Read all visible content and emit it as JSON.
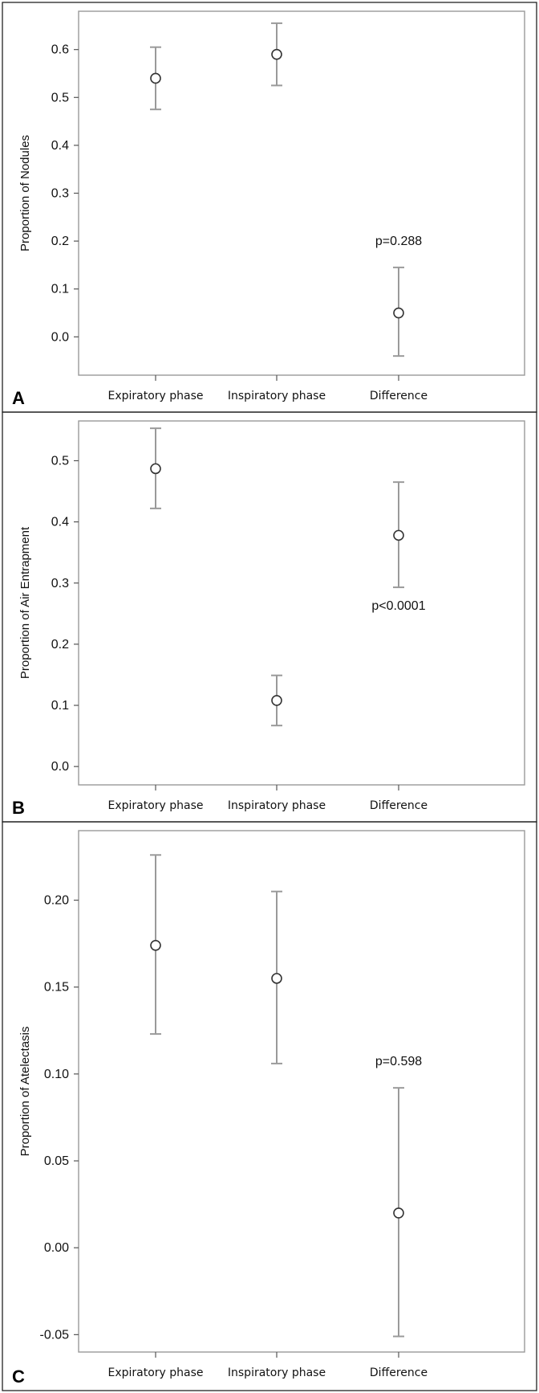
{
  "chart_data": [
    {
      "panel": "A",
      "type": "scatter",
      "categories": [
        "Expiratory phase",
        "Inspiratory phase",
        "Difference"
      ],
      "ylabel": "Proportion of Nodules",
      "xlabel": "",
      "ylim": [
        -0.08,
        0.68
      ],
      "yticks": [
        "0.0",
        "0.1",
        "0.2",
        "0.3",
        "0.4",
        "0.5",
        "0.6"
      ],
      "points": [
        {
          "category": "Expiratory phase",
          "value": 0.54,
          "lower": 0.475,
          "upper": 0.605
        },
        {
          "category": "Inspiratory phase",
          "value": 0.59,
          "lower": 0.525,
          "upper": 0.655
        },
        {
          "category": "Difference",
          "value": 0.05,
          "lower": -0.04,
          "upper": 0.145
        }
      ],
      "annotation": {
        "text": "p=0.288",
        "category": "Difference"
      }
    },
    {
      "panel": "B",
      "type": "scatter",
      "categories": [
        "Expiratory phase",
        "Inspiratory phase",
        "Difference"
      ],
      "ylabel": "Proportion of Air Entrapment",
      "xlabel": "",
      "ylim": [
        -0.03,
        0.565
      ],
      "yticks": [
        "0.0",
        "0.1",
        "0.2",
        "0.3",
        "0.4",
        "0.5"
      ],
      "points": [
        {
          "category": "Expiratory phase",
          "value": 0.487,
          "lower": 0.422,
          "upper": 0.553
        },
        {
          "category": "Inspiratory phase",
          "value": 0.108,
          "lower": 0.067,
          "upper": 0.149
        },
        {
          "category": "Difference",
          "value": 0.378,
          "lower": 0.293,
          "upper": 0.465
        }
      ],
      "annotation": {
        "text": "p<0.0001",
        "category": "Difference"
      }
    },
    {
      "panel": "C",
      "type": "scatter",
      "categories": [
        "Expiratory phase",
        "Inspiratory phase",
        "Difference"
      ],
      "ylabel": "Proportion of Atelectasis",
      "xlabel": "",
      "ylim": [
        -0.06,
        0.24
      ],
      "yticks": [
        "-0.05",
        "0.00",
        "0.05",
        "0.10",
        "0.15",
        "0.20"
      ],
      "points": [
        {
          "category": "Expiratory phase",
          "value": 0.174,
          "lower": 0.123,
          "upper": 0.226
        },
        {
          "category": "Inspiratory phase",
          "value": 0.155,
          "lower": 0.106,
          "upper": 0.205
        },
        {
          "category": "Difference",
          "value": 0.02,
          "lower": -0.051,
          "upper": 0.092
        }
      ],
      "annotation": {
        "text": "p=0.598",
        "category": "Difference"
      }
    }
  ],
  "colors": {
    "plot_border": "#9a9a9a",
    "ci_line": "#9a9a9a",
    "point_stroke": "#333333",
    "panel_border": "#222222"
  }
}
